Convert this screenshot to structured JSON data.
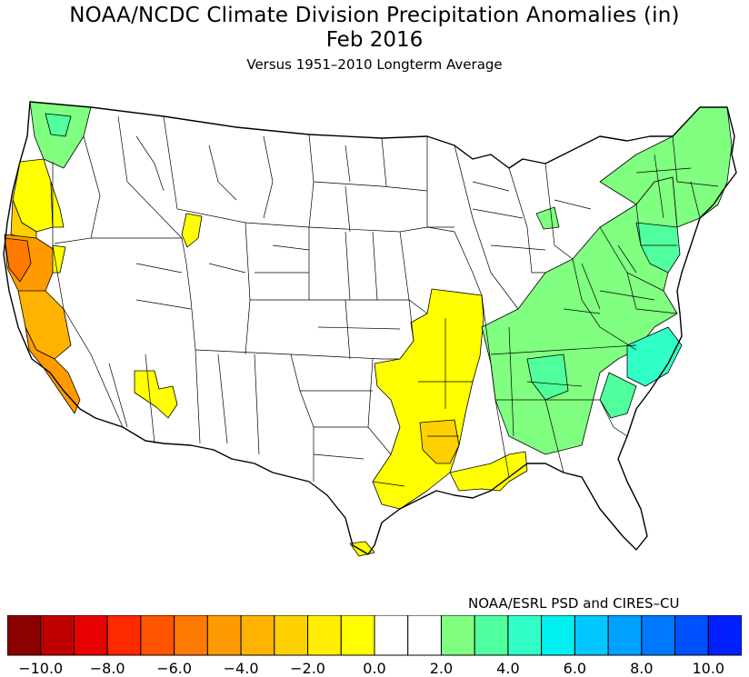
{
  "title": {
    "line1": "NOAA/NCDC Climate Division Precipitation Anomalies (in)",
    "line2": "Feb 2016",
    "line3": "Versus 1951–2010 Longterm Average"
  },
  "credit": "NOAA/ESRL PSD and CIRES–CU",
  "legend": {
    "colors": [
      "#8b0000",
      "#c00000",
      "#e60000",
      "#ff2a00",
      "#ff5500",
      "#ff7a00",
      "#ff9a00",
      "#ffb300",
      "#ffd000",
      "#ffee00",
      "#ffff00",
      "#ffffff",
      "#ffffff",
      "#80ff80",
      "#50ff9e",
      "#30ffc8",
      "#00f0f0",
      "#00c8ff",
      "#00a0ff",
      "#0078ff",
      "#0050ff",
      "#0020ff"
    ],
    "tick_labels": [
      "−10.0",
      "−8.0",
      "−6.0",
      "−4.0",
      "−2.0",
      "0.0",
      "2.0",
      "4.0",
      "6.0",
      "8.0",
      "10.0"
    ]
  },
  "map": {
    "region": "Contiguous United States climate divisions",
    "palette": {
      "dry_1": "#ffff00",
      "dry_2": "#ffd000",
      "dry_3": "#ffb300",
      "dry_4": "#ff9a00",
      "dry_5": "#ff7a00",
      "wet_1": "#80ff80",
      "wet_2": "#50ff9e",
      "wet_3": "#30ffc8"
    }
  }
}
